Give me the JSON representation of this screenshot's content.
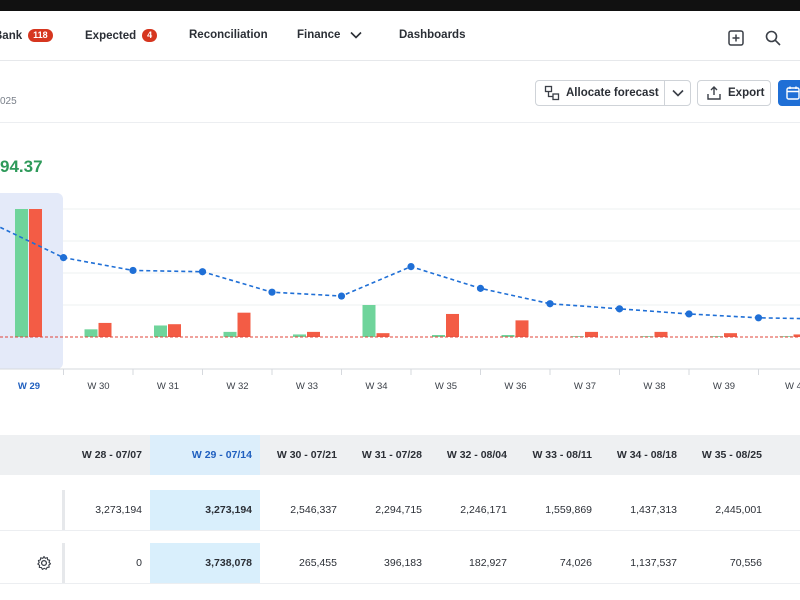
{
  "nav": {
    "items": [
      {
        "label": "Bank",
        "badge": "118"
      },
      {
        "label": "Expected",
        "badge": "4"
      },
      {
        "label": "Reconciliation"
      },
      {
        "label": "Finance"
      },
      {
        "label": "Dashboards"
      }
    ],
    "icons": [
      "add-square-icon",
      "search-icon"
    ]
  },
  "header": {
    "subtitle": "025",
    "amount": "94.37"
  },
  "toolbar": {
    "allocate_label": "Allocate forecast",
    "export_label": "Export"
  },
  "colors": {
    "green": "#6fd49b",
    "red": "#f35c45",
    "line": "#1f6fd6",
    "selected_bg": "#dceefb"
  },
  "chart_data": {
    "type": "bar",
    "categories": [
      "W 29",
      "W 30",
      "W 31",
      "W 32",
      "W 33",
      "W 34",
      "W 35",
      "W 36",
      "W 37",
      "W 38",
      "W 39",
      "W 4"
    ],
    "selected": "W 29",
    "series": [
      {
        "values": [
          100,
          6,
          9,
          4,
          2,
          25,
          1,
          1,
          0,
          0,
          0,
          0
        ]
      },
      {
        "values": [
          100,
          11,
          10,
          19,
          4,
          3,
          18,
          13,
          4,
          4,
          3,
          2
        ]
      }
    ],
    "line": [
      62,
      52,
      51,
      35,
      32,
      55,
      38,
      26,
      22,
      18,
      15,
      14
    ],
    "ylim": [
      0,
      100
    ]
  },
  "table": {
    "headers": [
      "W 28 - 07/07",
      "W 29 - 07/14",
      "W 30 - 07/21",
      "W 31 - 07/28",
      "W 32 - 08/04",
      "W 33 - 08/11",
      "W 34 - 08/18",
      "W 35 - 08/25"
    ],
    "rows": [
      {
        "cells": [
          "3,273,194",
          "3,273,194",
          "2,546,337",
          "2,294,715",
          "2,246,171",
          "1,559,869",
          "1,437,313",
          "2,445,001"
        ]
      },
      {
        "cells": [
          "0",
          "3,738,078",
          "265,455",
          "396,183",
          "182,927",
          "74,026",
          "1,137,537",
          "70,556"
        ]
      }
    ]
  }
}
